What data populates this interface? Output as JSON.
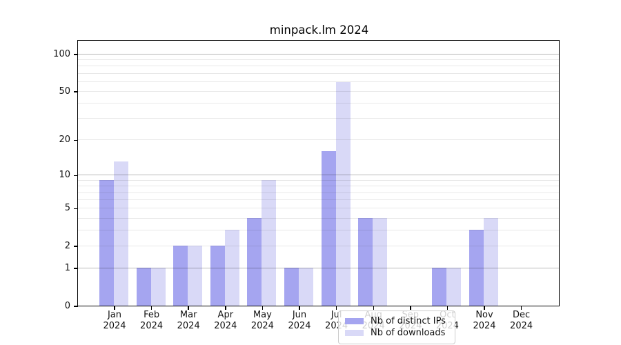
{
  "title": "minpack.lm 2024",
  "chart_data": {
    "type": "bar",
    "title": "minpack.lm 2024",
    "xlabel": "",
    "ylabel": "",
    "yscale": "log1p",
    "ylim": [
      0,
      128
    ],
    "grid": true,
    "legend_position": "lower center",
    "categories": [
      "Jan 2024",
      "Feb 2024",
      "Mar 2024",
      "Apr 2024",
      "May 2024",
      "Jun 2024",
      "Jul 2024",
      "Aug 2024",
      "Sep 2024",
      "Oct 2024",
      "Nov 2024",
      "Dec 2024"
    ],
    "series": [
      {
        "name": "Nb of distinct IPs",
        "color": "#a5a5f0",
        "values": [
          9,
          1,
          2,
          2,
          4,
          1,
          16,
          4,
          0,
          1,
          3,
          0
        ]
      },
      {
        "name": "Nb of downloads",
        "color": "#d9d9f7",
        "values": [
          13,
          1,
          2,
          3,
          9,
          1,
          59,
          4,
          0,
          1,
          4,
          0
        ]
      }
    ],
    "yticks": [
      0,
      1,
      2,
      5,
      10,
      20,
      50,
      100
    ],
    "minor_gridlines": [
      2,
      3,
      4,
      5,
      6,
      7,
      8,
      9,
      20,
      30,
      40,
      50,
      60,
      70,
      80,
      90
    ],
    "major_gridlines": [
      1,
      10,
      100
    ]
  },
  "colors": {
    "axis": "#000000",
    "text": "#111111",
    "minor_grid": "rgba(0,0,0,0.09)",
    "major_grid": "rgba(0,0,0,0.28)",
    "background": "#ffffff"
  }
}
